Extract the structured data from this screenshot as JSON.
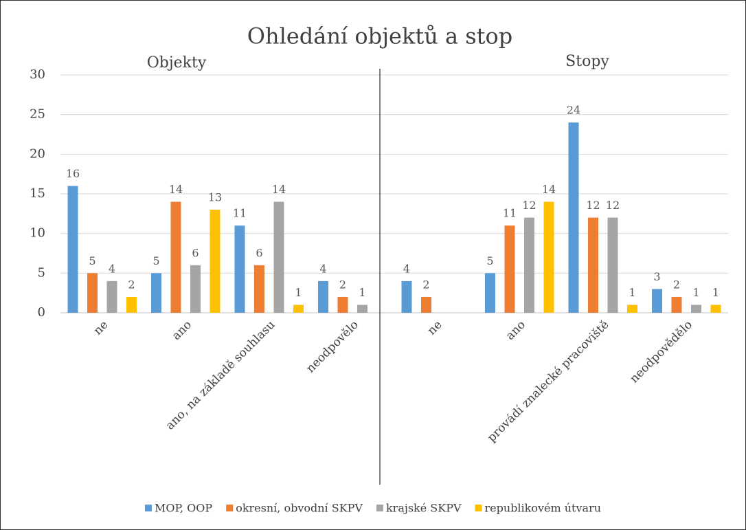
{
  "chart_data": {
    "type": "bar",
    "title": "Ohledání objektů a stop",
    "group_labels": [
      "Objekty",
      "Stopy"
    ],
    "categories": [
      "ne",
      "ano",
      "ano, na základě souhlasu",
      "neodpovělo",
      "ne",
      "ano",
      "provádí znalecké pracoviště",
      "neodpovědělo"
    ],
    "series": [
      {
        "name": "MOP, OOP",
        "color": "#5b9bd5",
        "values": [
          16,
          5,
          11,
          4,
          4,
          5,
          24,
          3
        ]
      },
      {
        "name": "okresní, obvodní SKPV",
        "color": "#ed7d31",
        "values": [
          5,
          14,
          6,
          2,
          2,
          11,
          12,
          2
        ]
      },
      {
        "name": "krajské SKPV",
        "color": "#a5a5a5",
        "values": [
          4,
          6,
          14,
          1,
          null,
          12,
          12,
          1
        ]
      },
      {
        "name": "republikovém útvaru",
        "color": "#ffc000",
        "values": [
          2,
          13,
          1,
          null,
          null,
          14,
          1,
          1
        ]
      }
    ],
    "ylim": [
      0,
      30
    ],
    "yticks": [
      0,
      5,
      10,
      15,
      20,
      25,
      30
    ],
    "grid": true,
    "legend": "bottom"
  }
}
